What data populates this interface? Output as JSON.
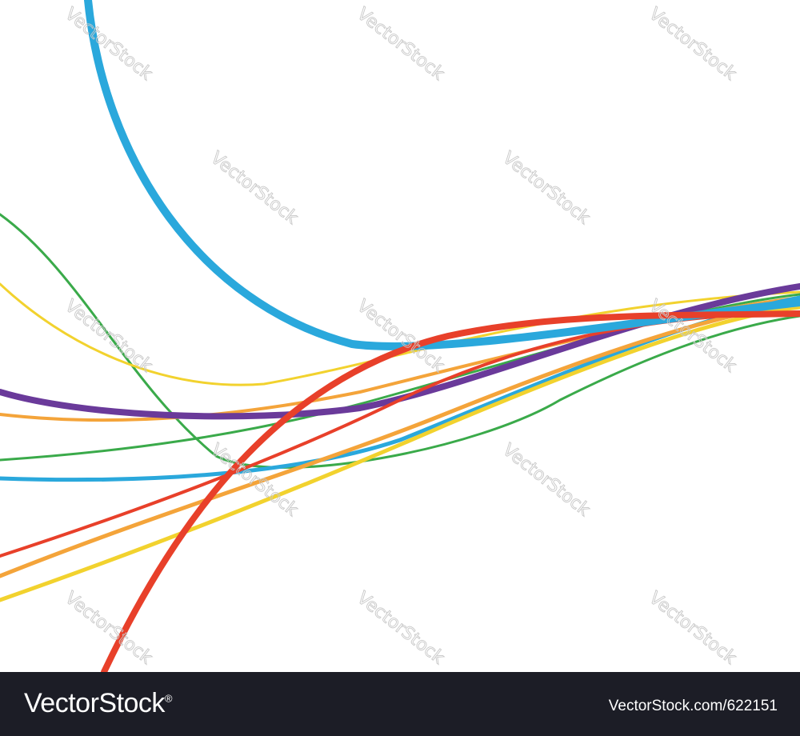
{
  "watermark": "VectorStock",
  "footer": {
    "logo": "VectorStock",
    "logo_mark": "®",
    "image_id": "VectorStock.com/622151"
  }
}
